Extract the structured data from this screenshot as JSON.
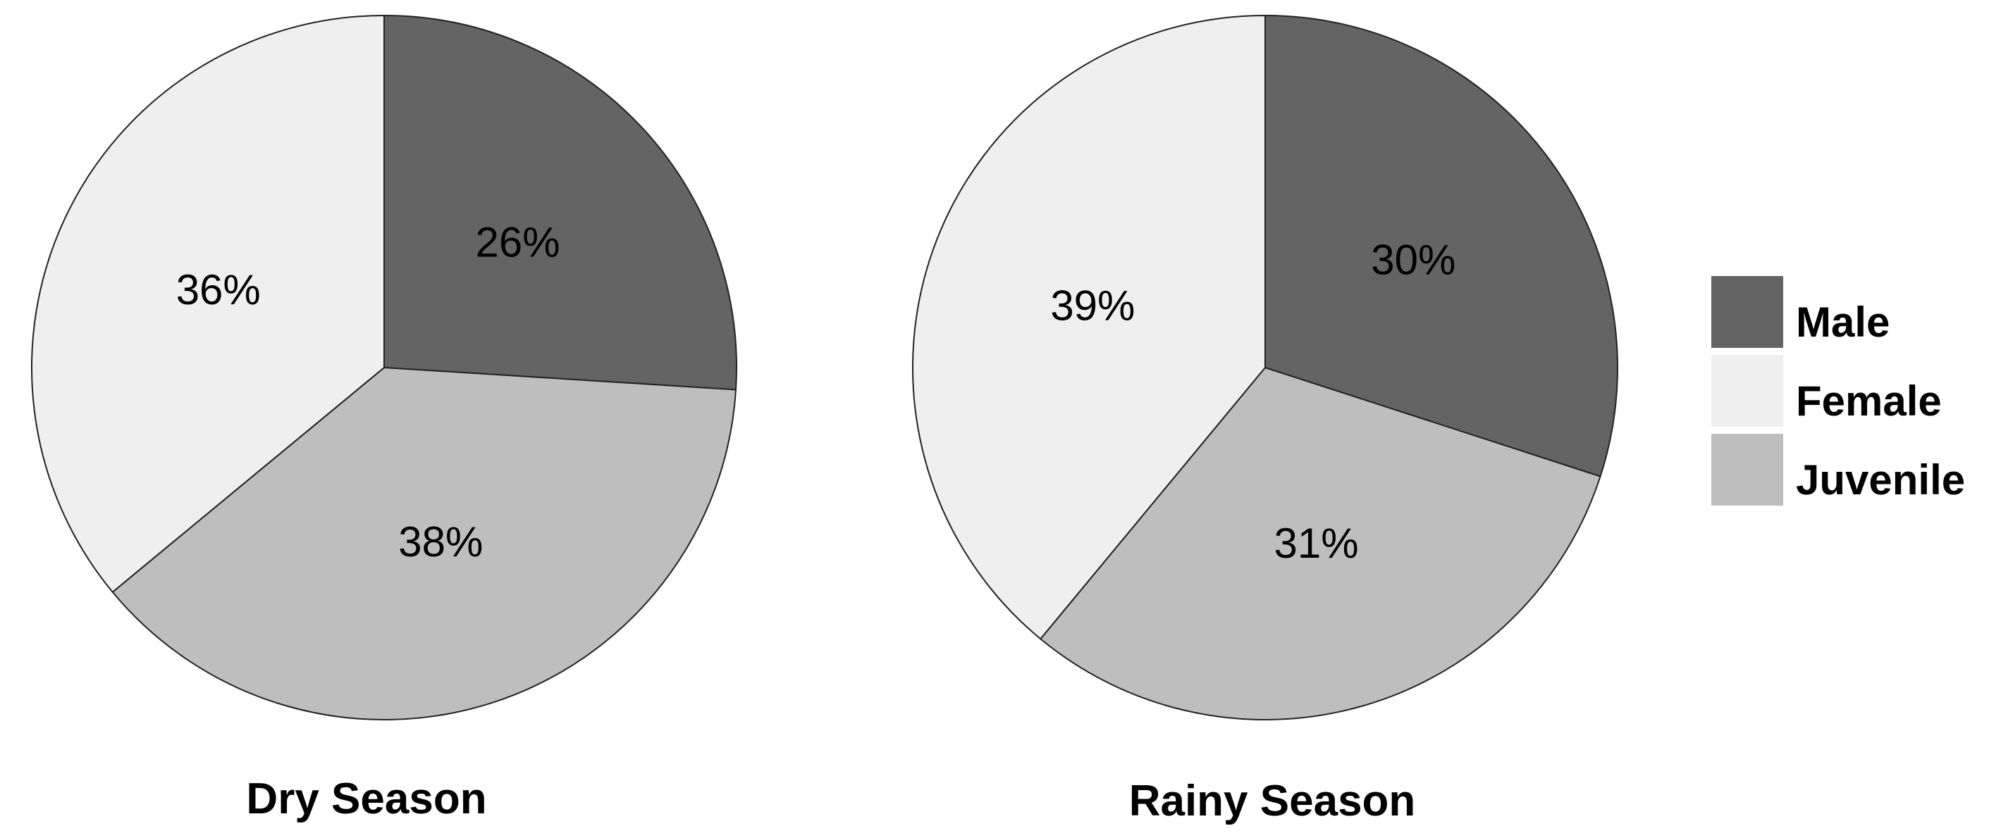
{
  "chart_data": [
    {
      "type": "pie",
      "title": "Dry Season",
      "categories": [
        "Male",
        "Female",
        "Juvenile"
      ],
      "values": [
        26,
        36,
        38
      ],
      "value_labels": [
        "26%",
        "36%",
        "38%"
      ]
    },
    {
      "type": "pie",
      "title": "Rainy Season",
      "categories": [
        "Male",
        "Female",
        "Juvenile"
      ],
      "values": [
        30,
        39,
        31
      ],
      "value_labels": [
        "30%",
        "39%",
        "31%"
      ]
    }
  ],
  "legend": {
    "placement": "right",
    "items": [
      {
        "label": "Male",
        "color": "#646464"
      },
      {
        "label": "Female",
        "color": "#efefef"
      },
      {
        "label": "Juvenile",
        "color": "#bebebe"
      }
    ]
  },
  "colors": {
    "Male": "#646464",
    "Female": "#efefef",
    "Juvenile": "#bebebe"
  }
}
